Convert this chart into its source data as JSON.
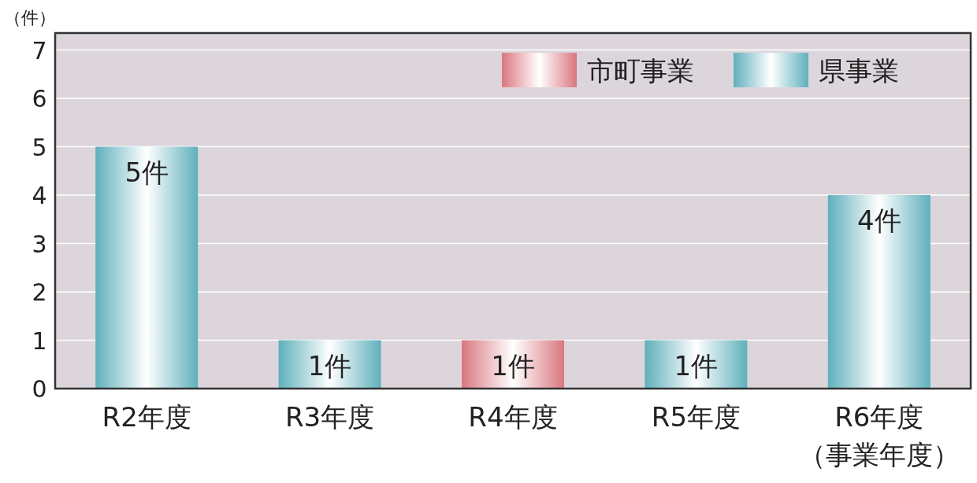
{
  "chart_data": {
    "type": "bar",
    "ylabel": "（件）",
    "categories": [
      "R2年度",
      "R3年度",
      "R4年度",
      "R5年度",
      "R6年度（事業年度）"
    ],
    "series": [
      {
        "name": "市町事業",
        "color": "#d9777f",
        "values": [
          null,
          null,
          1,
          null,
          null
        ],
        "value_labels": [
          null,
          null,
          "1件",
          null,
          null
        ]
      },
      {
        "name": "県事業",
        "color": "#5fb0bc",
        "values": [
          5,
          1,
          null,
          1,
          4
        ],
        "value_labels": [
          "5件",
          "1件",
          null,
          "1件",
          "4件"
        ]
      }
    ],
    "ylim": [
      0,
      7.35
    ],
    "yticks": [
      0,
      1,
      2,
      3,
      4,
      5,
      6,
      7
    ],
    "grid": "y",
    "legend": "top right"
  }
}
